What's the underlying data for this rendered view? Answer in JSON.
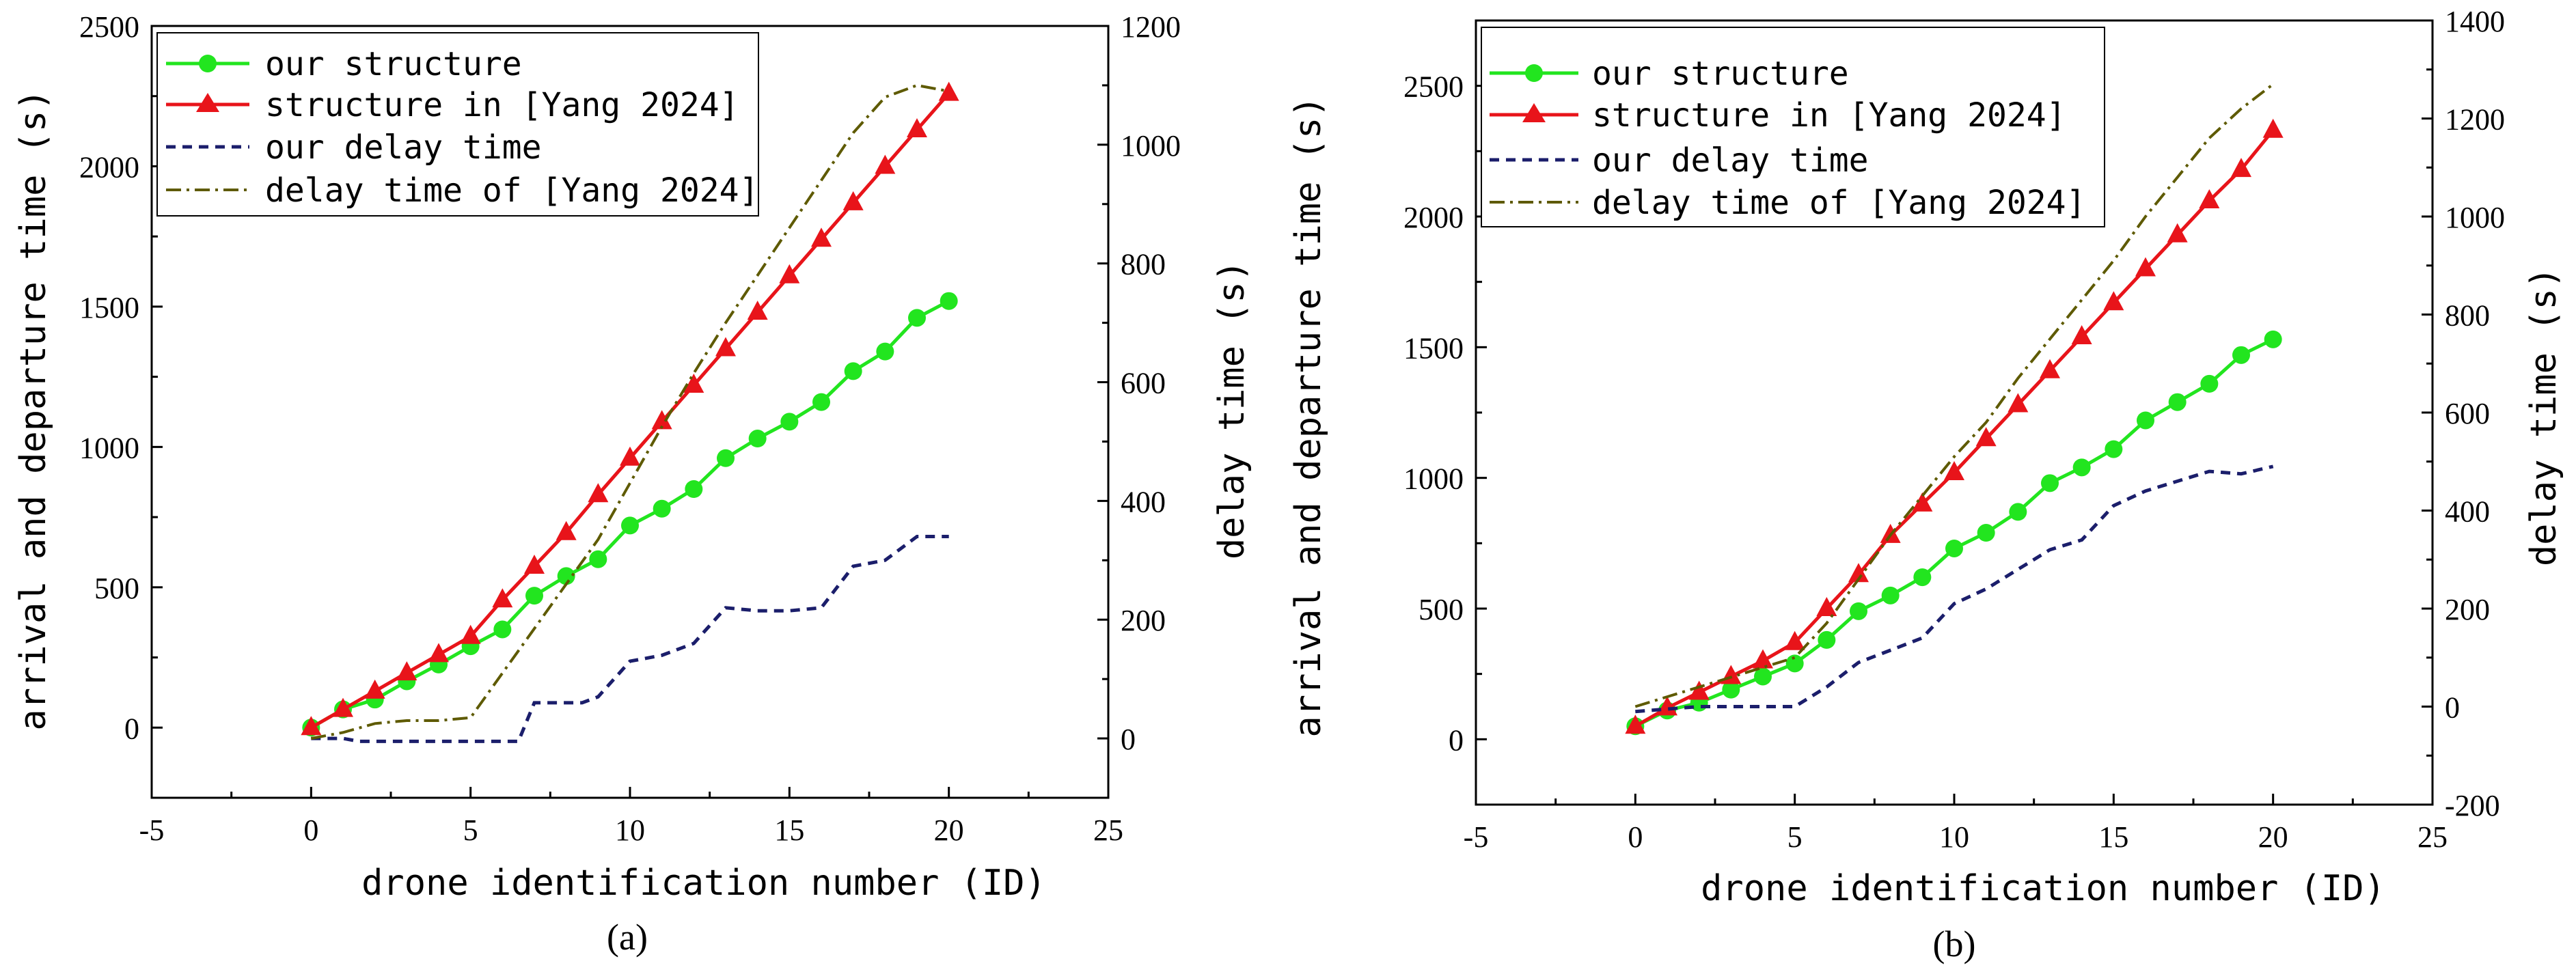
{
  "colors": {
    "our_structure": "#22e51f",
    "yang_structure": "#e8141a",
    "our_delay": "#1b1e6b",
    "yang_delay": "#5e5a00",
    "axis": "#000000"
  },
  "chart_data": [
    {
      "type": "line",
      "panel_label": "(a)",
      "xlabel": "drone identification number (ID)",
      "ylabel_left": "arrival and departure time (s)",
      "ylabel_right": "delay time (s)",
      "xlim": [
        -5,
        25
      ],
      "ylim_left": [
        -250,
        2500
      ],
      "ylim_right": [
        -100,
        1200
      ],
      "xticks": [
        -5,
        0,
        5,
        10,
        15,
        20,
        25
      ],
      "yticks_left": [
        0,
        500,
        1000,
        1500,
        2000,
        2500
      ],
      "yticks_right": [
        0,
        200,
        400,
        600,
        800,
        1000,
        1200
      ],
      "legend": [
        "our structure",
        "structure in [Yang 2024]",
        "our delay time",
        "delay time of [Yang 2024]"
      ],
      "x": [
        0,
        1,
        2,
        3,
        4,
        5,
        6,
        7,
        8,
        9,
        10,
        11,
        12,
        13,
        14,
        15,
        16,
        17,
        18,
        19,
        20
      ],
      "series": [
        {
          "name": "our structure",
          "axis": "left",
          "style": "green-circle",
          "values": [
            0,
            65,
            100,
            165,
            225,
            290,
            350,
            470,
            540,
            600,
            720,
            780,
            850,
            960,
            1030,
            1090,
            1160,
            1270,
            1340,
            1460,
            1520
          ]
        },
        {
          "name": "structure in [Yang 2024]",
          "axis": "left",
          "style": "red-triangle",
          "values": [
            0,
            65,
            130,
            195,
            260,
            325,
            455,
            575,
            695,
            830,
            960,
            1090,
            1220,
            1350,
            1480,
            1610,
            1740,
            1870,
            2000,
            2130,
            2260
          ]
        },
        {
          "name": "our delay time",
          "axis": "right",
          "style": "navy-dash",
          "x": [
            0,
            1,
            1.5,
            2,
            3,
            4,
            5,
            6,
            6.5,
            7,
            8,
            8.5,
            9,
            10,
            11,
            12,
            13,
            14,
            15,
            16,
            17,
            18,
            19,
            20
          ],
          "values": [
            0,
            0,
            -5,
            -5,
            -5,
            -5,
            -5,
            -5,
            -5,
            60,
            60,
            60,
            70,
            130,
            140,
            160,
            220,
            215,
            215,
            220,
            290,
            300,
            340,
            340
          ]
        },
        {
          "name": "delay time of [Yang 2024]",
          "axis": "right",
          "style": "olive-dashdot",
          "x": [
            0,
            1,
            2,
            3,
            4,
            5,
            6,
            7,
            8,
            9,
            10,
            11,
            12,
            13,
            14,
            15,
            16,
            17,
            18,
            19,
            20
          ],
          "values": [
            0,
            10,
            25,
            30,
            30,
            35,
            110,
            185,
            260,
            335,
            430,
            525,
            615,
            700,
            780,
            860,
            940,
            1020,
            1080,
            1100,
            1090
          ]
        }
      ]
    },
    {
      "type": "line",
      "panel_label": "(b)",
      "xlabel": "drone identification number (ID)",
      "ylabel_left": "arrival and departure time (s)",
      "ylabel_right": "delay time (s)",
      "xlim": [
        -5,
        25
      ],
      "ylim_left": [
        -250,
        2750
      ],
      "ylim_right": [
        -200,
        1400
      ],
      "xticks": [
        -5,
        0,
        5,
        10,
        15,
        20,
        25
      ],
      "yticks_left": [
        0,
        500,
        1000,
        1500,
        2000,
        2500
      ],
      "yticks_right": [
        -200,
        0,
        200,
        400,
        600,
        800,
        1000,
        1200,
        1400
      ],
      "legend": [
        "our structure",
        "structure in [Yang 2024]",
        "our delay time",
        "delay time of [Yang 2024]"
      ],
      "x": [
        0,
        1,
        2,
        3,
        4,
        5,
        6,
        7,
        8,
        9,
        10,
        11,
        12,
        13,
        14,
        15,
        16,
        17,
        18,
        19,
        20
      ],
      "series": [
        {
          "name": "our structure",
          "axis": "left",
          "style": "green-circle",
          "values": [
            50,
            110,
            140,
            190,
            240,
            290,
            380,
            490,
            550,
            620,
            730,
            790,
            870,
            980,
            1040,
            1110,
            1220,
            1290,
            1360,
            1470,
            1530
          ]
        },
        {
          "name": "structure in [Yang 2024]",
          "axis": "left",
          "style": "red-triangle",
          "values": [
            50,
            120,
            180,
            240,
            300,
            370,
            500,
            630,
            780,
            900,
            1020,
            1150,
            1280,
            1410,
            1540,
            1670,
            1800,
            1930,
            2060,
            2180,
            2330
          ]
        },
        {
          "name": "our delay time",
          "axis": "right",
          "style": "navy-dash",
          "x": [
            0,
            1,
            2,
            3,
            4,
            5,
            6,
            7,
            8,
            9,
            10,
            11,
            12,
            13,
            14,
            15,
            16,
            17,
            18,
            19,
            20
          ],
          "values": [
            -10,
            -5,
            0,
            0,
            0,
            0,
            40,
            90,
            115,
            140,
            210,
            240,
            280,
            320,
            340,
            410,
            440,
            460,
            480,
            475,
            490
          ]
        },
        {
          "name": "delay time of [Yang 2024]",
          "axis": "right",
          "style": "olive-dashdot",
          "x": [
            0,
            1,
            2,
            3,
            4,
            5,
            6,
            7,
            8,
            9,
            10,
            11,
            12,
            13,
            14,
            15,
            16,
            17,
            18,
            19,
            20
          ],
          "values": [
            0,
            20,
            40,
            60,
            80,
            100,
            170,
            260,
            350,
            430,
            510,
            580,
            670,
            750,
            830,
            910,
            1000,
            1080,
            1160,
            1220,
            1270
          ]
        }
      ]
    }
  ]
}
